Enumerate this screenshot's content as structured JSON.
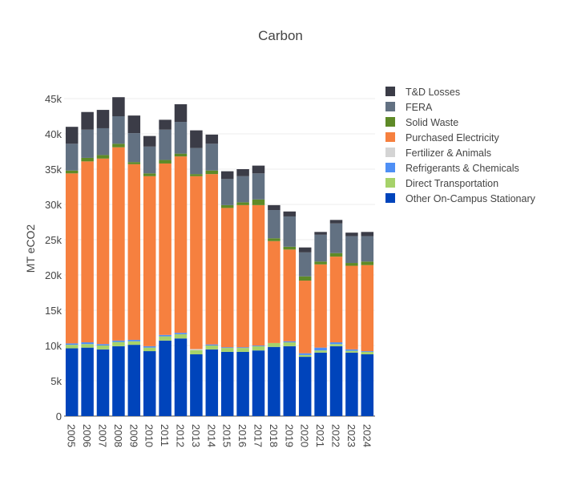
{
  "chart_data": {
    "type": "bar",
    "stacked": true,
    "title": "Carbon",
    "xlabel": "",
    "ylabel": "MT eCO2",
    "ylim": [
      0,
      45000
    ],
    "yticks": [
      0,
      5000,
      10000,
      15000,
      20000,
      25000,
      30000,
      35000,
      40000,
      45000
    ],
    "ytick_labels": [
      "0",
      "5k",
      "10k",
      "15k",
      "20k",
      "25k",
      "30k",
      "35k",
      "40k",
      "45k"
    ],
    "grid": true,
    "legend_position": "right",
    "categories": [
      "2005",
      "2006",
      "2007",
      "2008",
      "2009",
      "2010",
      "2011",
      "2012",
      "2013",
      "2014",
      "2015",
      "2016",
      "2017",
      "2018",
      "2019",
      "2020",
      "2021",
      "2022",
      "2023",
      "2024"
    ],
    "series": [
      {
        "name": "Other On-Campus Stationary",
        "color": "#0044bb",
        "values": [
          9600,
          9700,
          9450,
          9900,
          10100,
          9200,
          10700,
          11000,
          8750,
          9450,
          9100,
          9100,
          9300,
          9800,
          9900,
          8400,
          9000,
          9900,
          9000,
          8750
        ]
      },
      {
        "name": "Direct Transportation",
        "color": "#a6d26a",
        "values": [
          500,
          500,
          550,
          600,
          500,
          500,
          600,
          600,
          600,
          550,
          550,
          550,
          600,
          550,
          550,
          250,
          300,
          300,
          250,
          350
        ]
      },
      {
        "name": "Refrigerants & Chemicals",
        "color": "#4e8ff5",
        "values": [
          200,
          250,
          200,
          200,
          200,
          200,
          200,
          200,
          0,
          150,
          100,
          100,
          100,
          0,
          150,
          250,
          400,
          250,
          200,
          100
        ]
      },
      {
        "name": "Fertilizer & Animals",
        "color": "#d4d4d4",
        "values": [
          0,
          0,
          0,
          0,
          0,
          0,
          0,
          0,
          150,
          0,
          0,
          0,
          0,
          0,
          0,
          0,
          0,
          0,
          0,
          0
        ]
      },
      {
        "name": "Purchased Electricity",
        "color": "#f6803f",
        "values": [
          24100,
          25650,
          26300,
          27400,
          24900,
          24100,
          24300,
          25000,
          24500,
          24150,
          19750,
          20150,
          19900,
          14450,
          13000,
          10300,
          11800,
          12150,
          11850,
          12200
        ]
      },
      {
        "name": "Solid Waste",
        "color": "#5e8a27",
        "values": [
          400,
          500,
          500,
          500,
          300,
          400,
          500,
          400,
          300,
          500,
          400,
          400,
          800,
          400,
          400,
          600,
          400,
          500,
          400,
          500
        ]
      },
      {
        "name": "FERA",
        "color": "#627182",
        "values": [
          3800,
          4000,
          3800,
          3900,
          4100,
          3800,
          4300,
          4500,
          3700,
          3800,
          3700,
          3700,
          3700,
          4000,
          4300,
          3400,
          3800,
          4200,
          3800,
          3600
        ]
      },
      {
        "name": "T&D Losses",
        "color": "#3b3c47",
        "values": [
          2400,
          2500,
          2600,
          2700,
          2500,
          1500,
          1400,
          2500,
          2500,
          1300,
          1100,
          1000,
          1100,
          700,
          700,
          700,
          400,
          500,
          500,
          600
        ]
      }
    ]
  }
}
